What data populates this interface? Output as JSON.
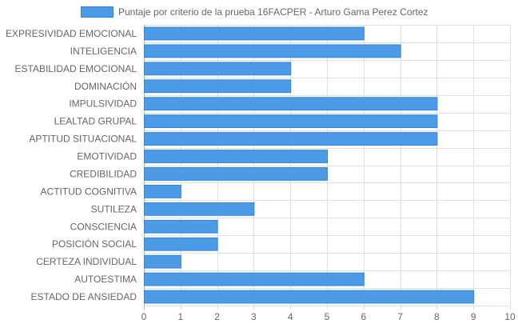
{
  "chart_data": {
    "type": "bar",
    "orientation": "horizontal",
    "legend": {
      "position": "top-center",
      "label": "Puntaje por criterio de la prueba 16FACPER - Arturo Gama Perez Cortez"
    },
    "categories": [
      "EXPRESIVIDAD EMOCIONAL",
      "INTELIGENCIA",
      "ESTABILIDAD EMOCIONAL",
      "DOMINACIÓN",
      "IMPULSIVIDAD",
      "LEALTAD GRUPAL",
      "APTITUD SITUACIONAL",
      "EMOTIVIDAD",
      "CREDIBILIDAD",
      "ACTITUD COGNITIVA",
      "SUTILEZA",
      "CONSCIENCIA",
      "POSICIÓN SOCIAL",
      "CERTEZA INDIVIDUAL",
      "AUTOESTIMA",
      "ESTADO DE ANSIEDAD"
    ],
    "series": [
      {
        "name": "Puntaje por criterio de la prueba 16FACPER - Arturo Gama Perez Cortez",
        "values": [
          6,
          7,
          4,
          4,
          8,
          8,
          8,
          5,
          5,
          1,
          3,
          2,
          2,
          1,
          6,
          9
        ],
        "fill": "#4d9be6",
        "stroke": "#2f84de"
      }
    ],
    "xlim": [
      0,
      10
    ],
    "xticks": [
      "0",
      "1",
      "2",
      "3",
      "4",
      "5",
      "6",
      "7",
      "8",
      "9",
      "10"
    ],
    "grid": true,
    "gridColor": "#e0e0e0"
  }
}
